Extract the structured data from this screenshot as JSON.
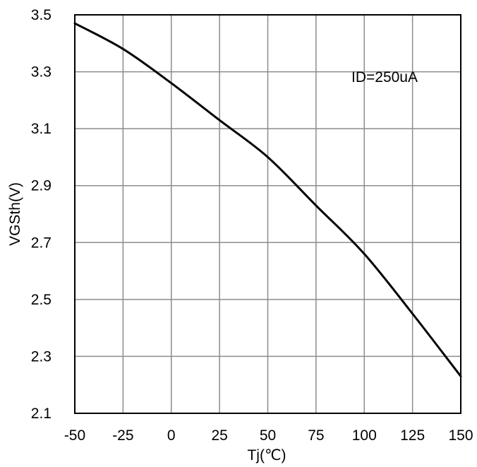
{
  "chart_data": {
    "type": "line",
    "title": "",
    "xlabel": "Tj(℃)",
    "ylabel": "VGSth(V)",
    "annotation": "ID=250uA",
    "xlim": [
      -50,
      150
    ],
    "ylim": [
      2.1,
      3.5
    ],
    "xticks": [
      -50,
      -25,
      0,
      25,
      50,
      75,
      100,
      125,
      150
    ],
    "xtick_labels": [
      "-50",
      "-25",
      "0",
      "25",
      "50",
      "75",
      "100",
      "125",
      "150"
    ],
    "yticks": [
      2.1,
      2.3,
      2.5,
      2.7,
      2.9,
      3.1,
      3.3,
      3.5
    ],
    "ytick_labels": [
      "2.1",
      "2.3",
      "2.5",
      "2.7",
      "2.9",
      "3.1",
      "3.3",
      "3.5"
    ],
    "grid": true,
    "line_color": "#000000",
    "grid_color": "#8c8c8c",
    "series": [
      {
        "x": [
          -50,
          -25,
          0,
          25,
          50,
          75,
          100,
          125,
          150
        ],
        "y": [
          3.47,
          3.38,
          3.26,
          3.13,
          3.0,
          2.83,
          2.66,
          2.45,
          2.23
        ]
      }
    ]
  }
}
